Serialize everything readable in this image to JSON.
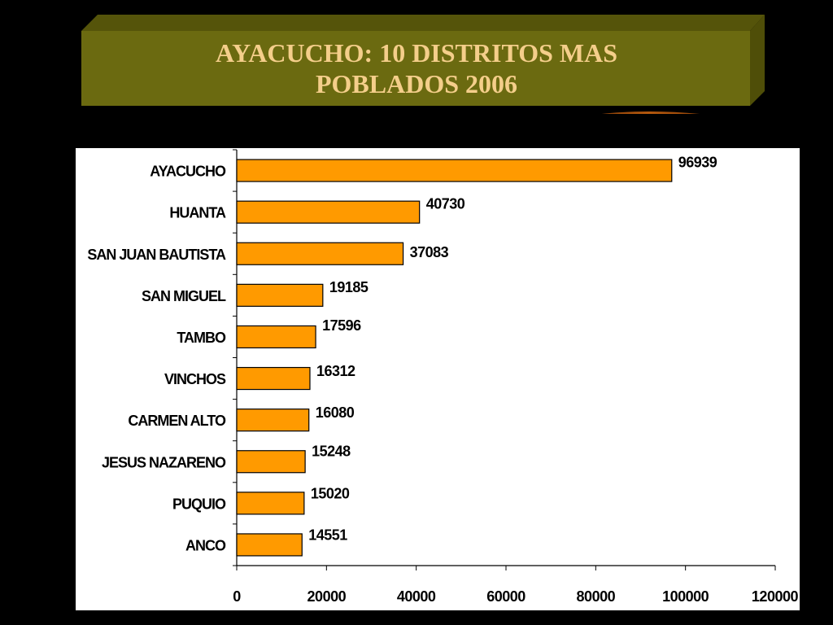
{
  "title": {
    "line1": "AYACUCHO: 10 DISTRITOS MAS",
    "line2": "POBLADOS 2006"
  },
  "colors": {
    "bar_fill": "#ff9a00",
    "bar_stroke": "#000000",
    "banner_fill": "#6b6a10",
    "banner_side": "#4f4e08",
    "title_text": "#f4ce8a",
    "background": "#000000",
    "swoosh": "#c8620f"
  },
  "chart_data": {
    "type": "bar",
    "orientation": "horizontal",
    "categories": [
      "AYACUCHO",
      "HUANTA",
      "SAN JUAN BAUTISTA",
      "SAN MIGUEL",
      "TAMBO",
      "VINCHOS",
      "CARMEN ALTO",
      "JESUS NAZARENO",
      "PUQUIO",
      "ANCO"
    ],
    "values": [
      96939,
      40730,
      37083,
      19185,
      17596,
      16312,
      16080,
      15248,
      15020,
      14551
    ],
    "value_labels": [
      "96939",
      "40730",
      "37083",
      "19185",
      "17596",
      "16312",
      "16080",
      "15248",
      "15020",
      "14551"
    ],
    "x_ticks": [
      0,
      20000,
      40000,
      60000,
      80000,
      100000,
      120000
    ],
    "x_tick_labels": [
      "0",
      "20000",
      "40000",
      "60000",
      "80000",
      "100000",
      "120000"
    ],
    "xlim": [
      0,
      120000
    ],
    "grid": false,
    "legend": "none"
  }
}
